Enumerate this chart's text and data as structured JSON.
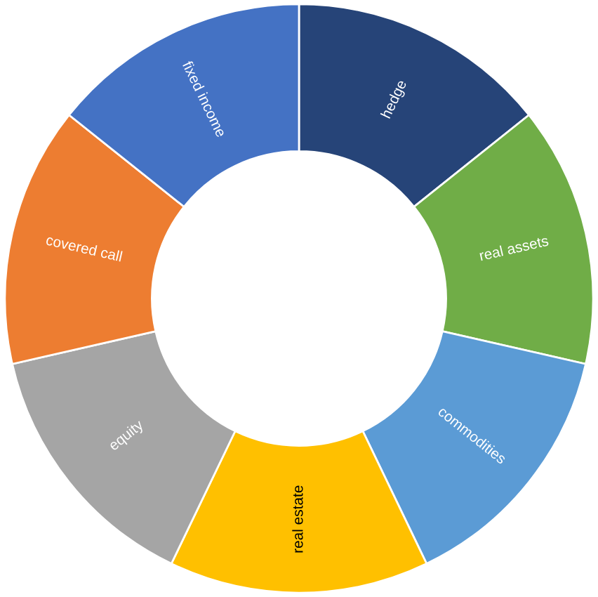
{
  "chart_data": {
    "type": "donut",
    "categories": [
      "hedge",
      "real assets",
      "commodities",
      "real estate",
      "equity",
      "covered call",
      "fixed income"
    ],
    "values": [
      14.29,
      14.29,
      14.29,
      14.29,
      14.29,
      14.29,
      14.29
    ],
    "colors": [
      "#264478",
      "#70ad47",
      "#5b9bd5",
      "#ffc000",
      "#a5a5a5",
      "#ed7d31",
      "#4472c4"
    ]
  }
}
